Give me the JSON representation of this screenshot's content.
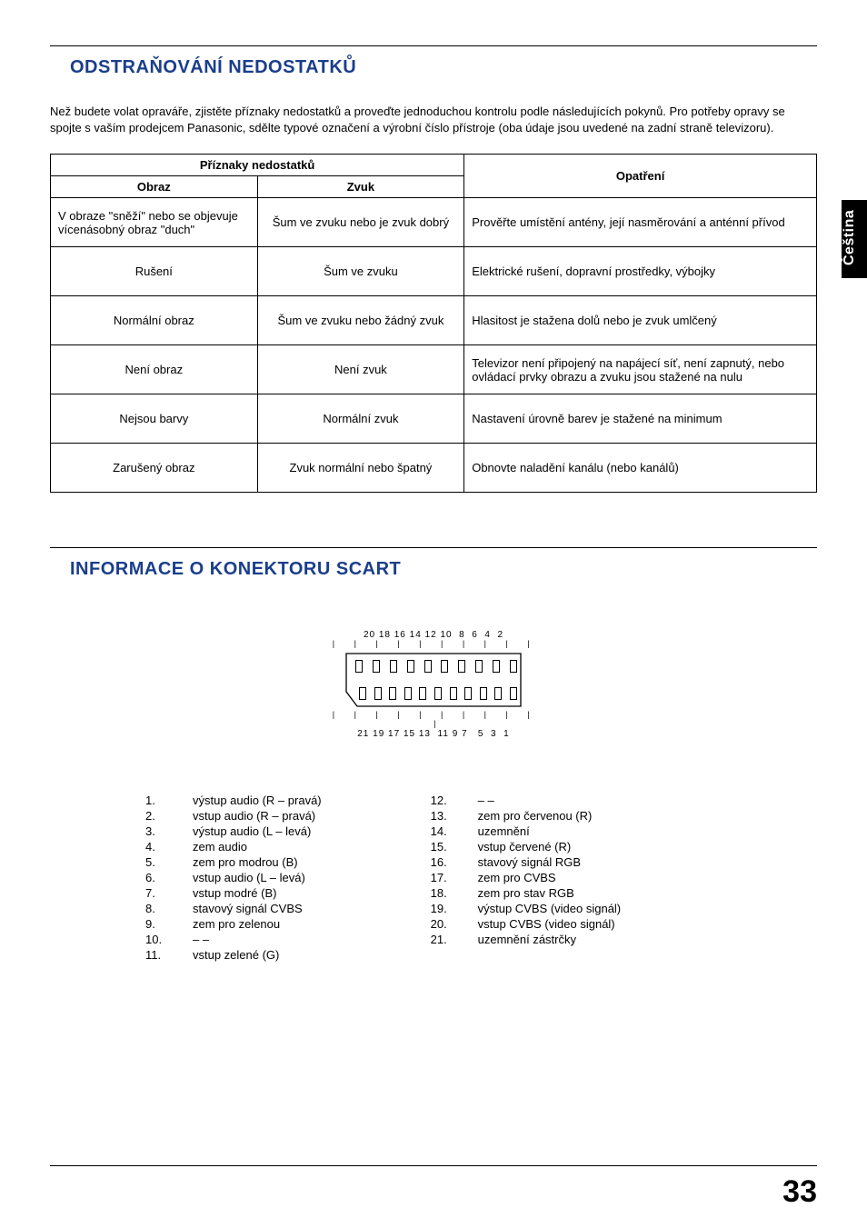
{
  "side_tab": "Čeština",
  "page_number": "33",
  "section1": {
    "heading": "ODSTRAŇOVÁNÍ NEDOSTATKŮ",
    "intro": "Než budete volat opraváře, zjistěte příznaky nedostatků a proveďte jednoduchou kontrolu podle následujících pokynů. Pro potřeby opravy se spojte s vaším prodejcem Panasonic, sdělte typové označení a výrobní číslo přístroje (oba údaje jsou uvedené na zadní straně televizoru).",
    "table": {
      "header_priznaky": "Příznaky nedostatků",
      "header_obraz": "Obraz",
      "header_zvuk": "Zvuk",
      "header_opatreni": "Opatření",
      "rows": [
        {
          "obraz": "V obraze \"sněží\" nebo se objevuje vícenásobný obraz \"duch\"",
          "zvuk": "Šum ve zvuku nebo je zvuk dobrý",
          "opatreni": "Prověřte umístění antény, její nasměrování a anténní přívod"
        },
        {
          "obraz": "Rušení",
          "zvuk": "Šum ve zvuku",
          "opatreni": "Elektrické rušení, dopravní prostředky, výbojky"
        },
        {
          "obraz": "Normální obraz",
          "zvuk": "Šum ve zvuku nebo žádný zvuk",
          "opatreni": "Hlasitost je stažena dolů nebo je zvuk umlčený"
        },
        {
          "obraz": "Není obraz",
          "zvuk": "Není zvuk",
          "opatreni": "Televizor není připojený na napájecí síť, není zapnutý, nebo ovládací prvky obrazu a zvuku jsou stažené na nulu"
        },
        {
          "obraz": "Nejsou barvy",
          "zvuk": "Normální zvuk",
          "opatreni": "Nastavení úrovně barev je stažené na minimum"
        },
        {
          "obraz": "Zarušený obraz",
          "zvuk": "Zvuk normální nebo špatný",
          "opatreni": "Obnovte naladění kanálu (nebo kanálů)"
        }
      ]
    }
  },
  "section2": {
    "heading": "INFORMACE O KONEKTORU SCART",
    "diagram": {
      "top_numbers": "20 18 16 14 12 10  8  6  4  2",
      "bottom_numbers": "21 19 17 15 13  11 9 7   5  3  1"
    },
    "pins_left": [
      {
        "n": "1.",
        "t": "výstup audio (R – pravá)"
      },
      {
        "n": "2.",
        "t": "vstup audio (R – pravá)"
      },
      {
        "n": "3.",
        "t": "výstup audio (L – levá)"
      },
      {
        "n": "4.",
        "t": "zem audio"
      },
      {
        "n": "5.",
        "t": "zem pro modrou (B)"
      },
      {
        "n": "6.",
        "t": "vstup audio (L – levá)"
      },
      {
        "n": "7.",
        "t": "vstup modré (B)"
      },
      {
        "n": "8.",
        "t": "stavový signál CVBS"
      },
      {
        "n": "9.",
        "t": "zem pro zelenou"
      },
      {
        "n": "10.",
        "t": "– –"
      },
      {
        "n": "11.",
        "t": "vstup zelené (G)"
      }
    ],
    "pins_right": [
      {
        "n": "12.",
        "t": "– –"
      },
      {
        "n": "13.",
        "t": "zem pro červenou (R)"
      },
      {
        "n": "14.",
        "t": "uzemnění"
      },
      {
        "n": "15.",
        "t": "vstup červené (R)"
      },
      {
        "n": "16.",
        "t": "stavový signál RGB"
      },
      {
        "n": "17.",
        "t": "zem pro CVBS"
      },
      {
        "n": "18.",
        "t": "zem pro stav RGB"
      },
      {
        "n": "19.",
        "t": "výstup CVBS (video signál)"
      },
      {
        "n": "20.",
        "t": "vstup CVBS (video signál)"
      },
      {
        "n": "21.",
        "t": "uzemnění zástrčky"
      }
    ]
  }
}
